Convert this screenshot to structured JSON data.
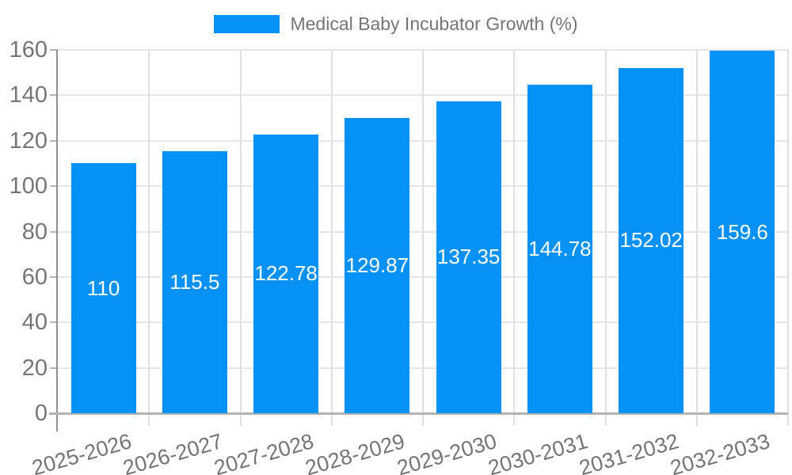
{
  "legend": {
    "label": "Medical Baby Incubator Growth (%)"
  },
  "colors": {
    "bar": "#0591f5",
    "grid_horizontal": "#e6e6e6",
    "grid_vertical": "#e0e0e0",
    "tick": "#b7b7b7",
    "axis_line": "#8f8f8f",
    "baseline": "#b3b3b3",
    "axis_text": "#757575",
    "bar_label_text": "#ffffff",
    "legend_text": "#757575"
  },
  "chart_data": {
    "type": "bar",
    "title": "Medical Baby Incubator Growth (%)",
    "series_name": "Medical Baby Incubator Growth (%)",
    "categories": [
      "2025-2026",
      "2026-2027",
      "2027-2028",
      "2028-2029",
      "2029-2030",
      "2030-2031",
      "2031-2032",
      "2032-2033"
    ],
    "values": [
      110,
      115.5,
      122.78,
      129.87,
      137.35,
      144.78,
      152.02,
      159.6
    ],
    "value_labels": [
      "110",
      "115.5",
      "122.78",
      "129.87",
      "137.35",
      "144.78",
      "152.02",
      "159.6"
    ],
    "xlabel": "",
    "ylabel": "",
    "ylim": [
      0,
      160
    ],
    "y_ticks": [
      0,
      20,
      40,
      60,
      80,
      100,
      120,
      140,
      160
    ],
    "grid": true,
    "legend_position": "top",
    "x_labels_rotated": true
  }
}
